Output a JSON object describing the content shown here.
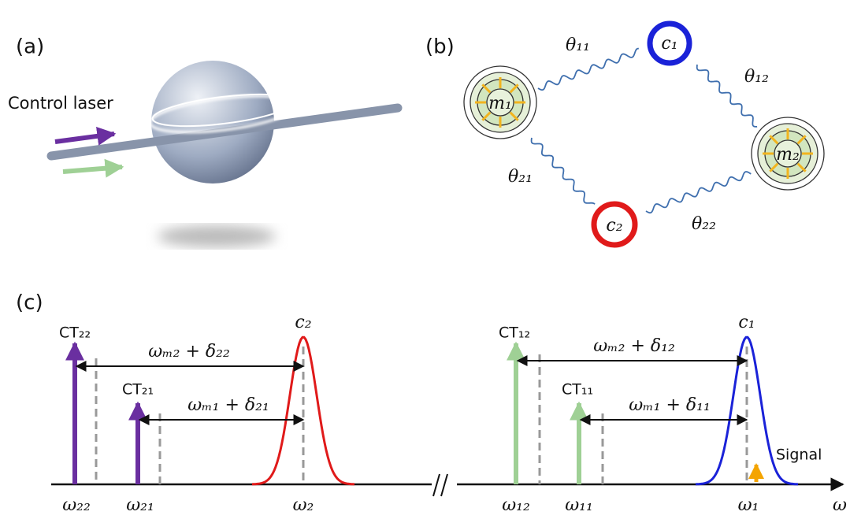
{
  "panel_a": {
    "label": "(a)",
    "control_laser": "Control laser"
  },
  "panel_b": {
    "label": "(b)",
    "nodes": [
      "c₁",
      "c₂",
      "m₁",
      "m₂"
    ],
    "couplings": [
      "θ₁₁",
      "θ₁₂",
      "θ₂₁",
      "θ₂₂"
    ]
  },
  "panel_c": {
    "label": "(c)",
    "tones": [
      "CT₂₂",
      "CT₂₁",
      "CT₁₂",
      "CT₁₁"
    ],
    "modes": [
      "c₂",
      "c₁"
    ],
    "spacings": [
      "ωₘ₂ + δ₂₂",
      "ωₘ₁ + δ₂₁",
      "ωₘ₂ + δ₁₂",
      "ωₘ₁ + δ₁₁"
    ],
    "signal": "Signal",
    "axis_labels": [
      "ω₂₂",
      "ω₂₁",
      "ω₂",
      "ω₁₂",
      "ω₁₁",
      "ω₁",
      "ω"
    ]
  }
}
